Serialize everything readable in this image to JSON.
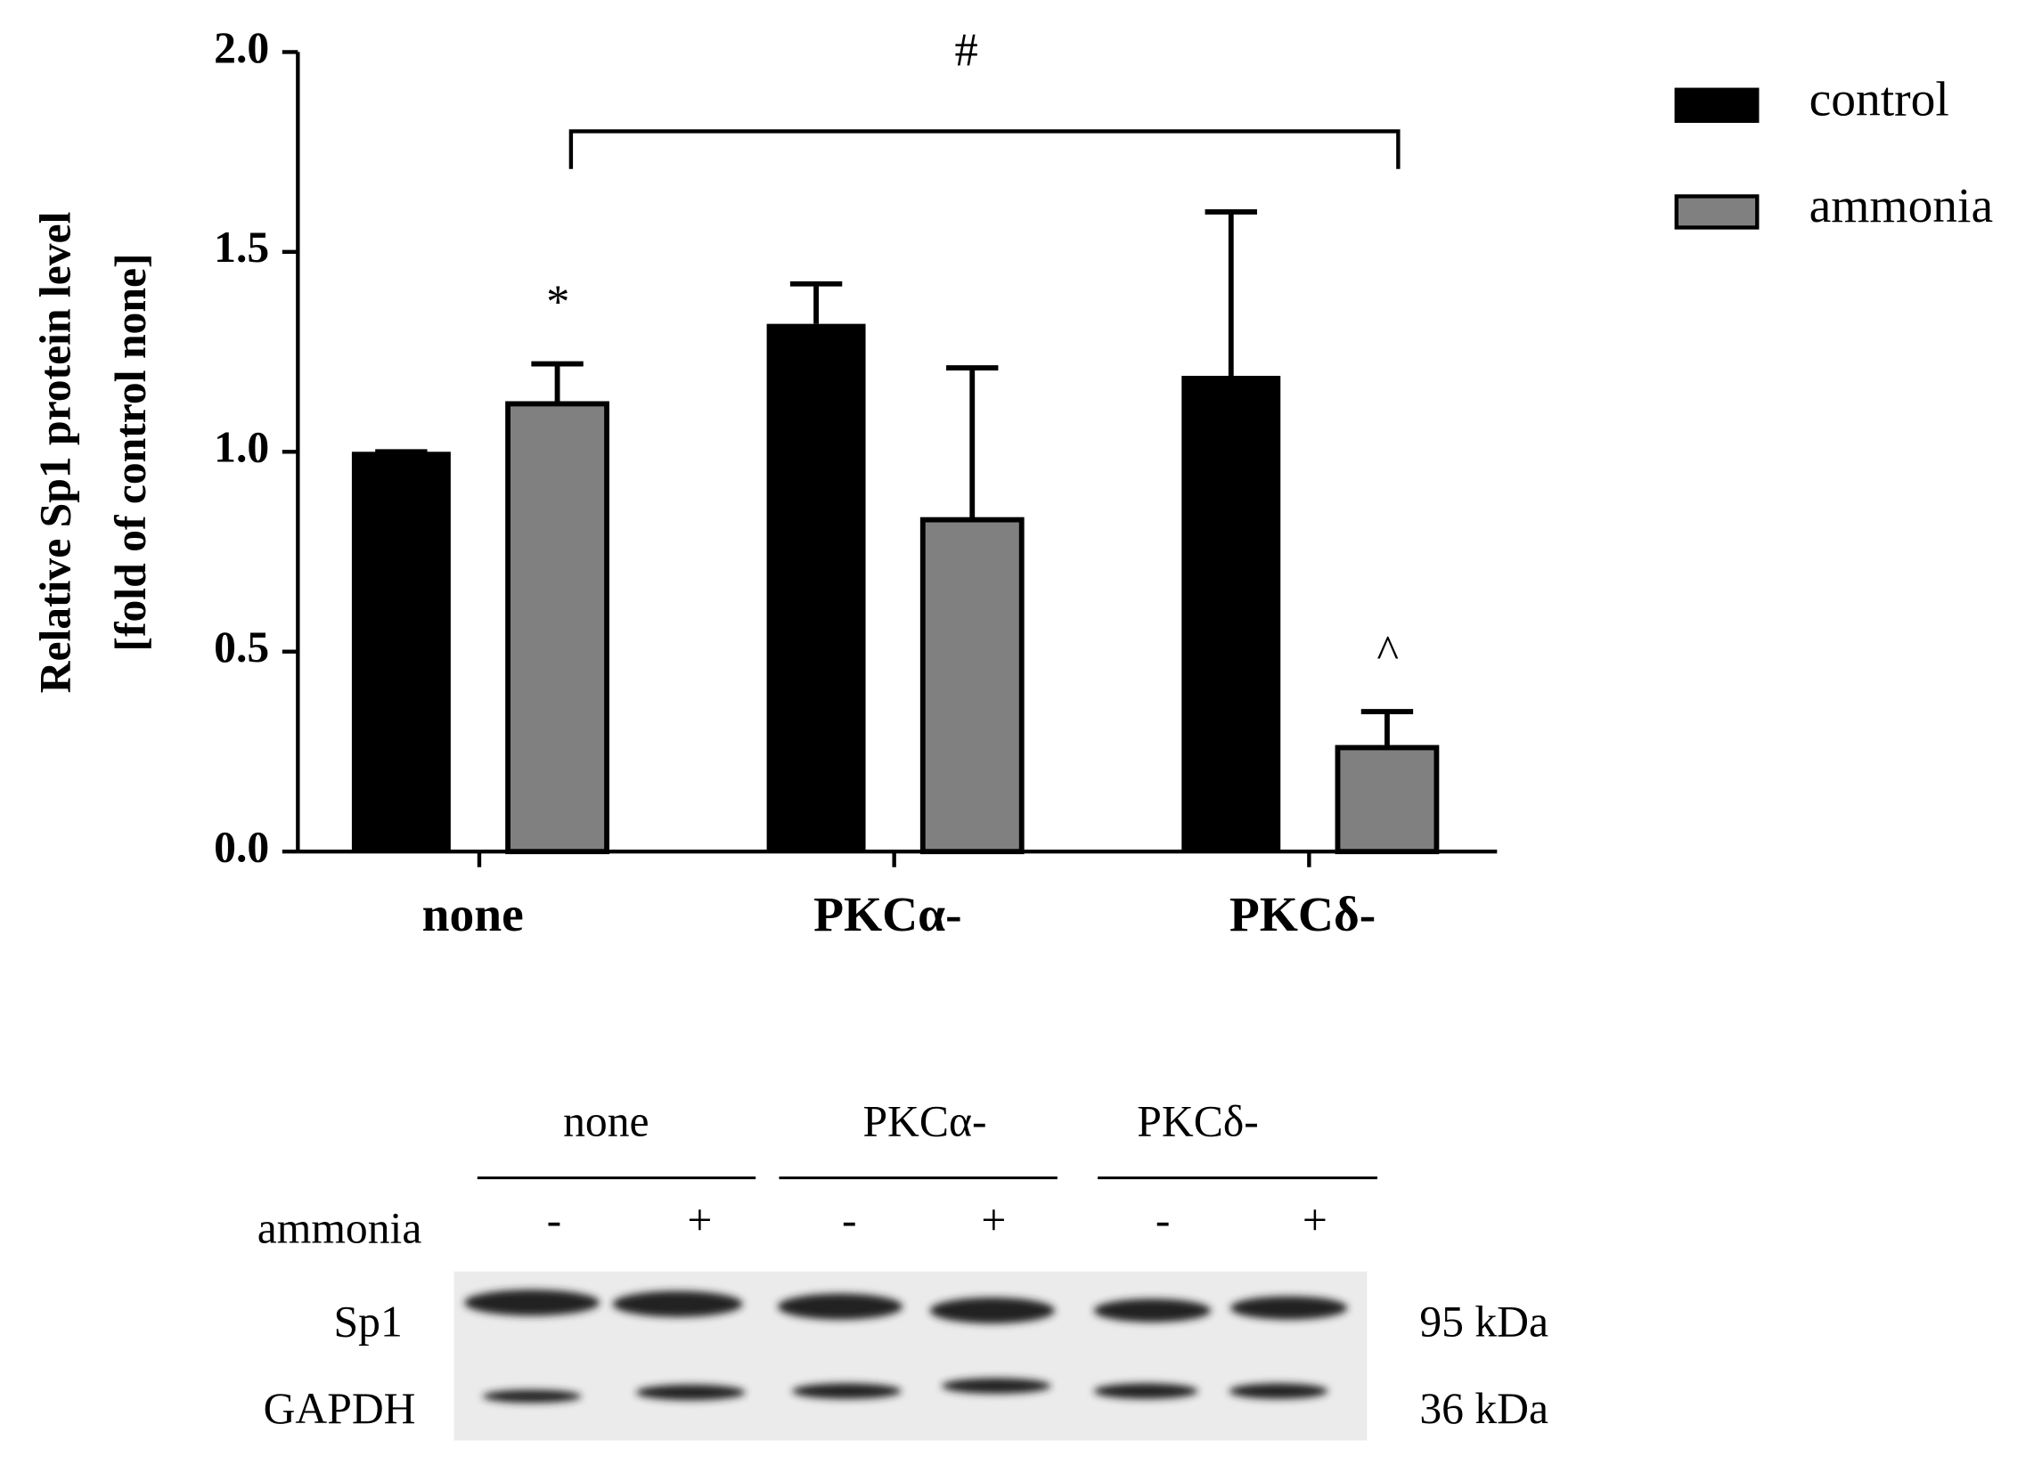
{
  "chart_data": {
    "type": "bar",
    "ylabel": [
      "Relative Sp1 protein level",
      "[fold of control none]"
    ],
    "categories": [
      "none",
      "PKCα-",
      "PKCδ-"
    ],
    "series": [
      {
        "name": "control",
        "color": "#000000",
        "values": [
          1.0,
          1.32,
          1.19
        ],
        "errors": [
          0,
          0.1,
          0.41
        ]
      },
      {
        "name": "ammonia",
        "color": "#808080",
        "values": [
          1.12,
          0.83,
          0.26
        ],
        "errors": [
          0.1,
          0.38,
          0.09
        ]
      }
    ],
    "ylim": [
      0,
      2
    ],
    "yticks": [
      {
        "value": 0,
        "label": "0.0"
      },
      0.5,
      {
        "value": 1,
        "label": "1.0"
      },
      1.5,
      {
        "value": 2,
        "label": "2.0"
      }
    ],
    "annotations": [
      "*",
      "^",
      "#"
    ],
    "legend": "top-right"
  },
  "blot": {
    "groups": [
      "none",
      "PKCα-",
      "PKCδ-"
    ],
    "treatment_label": "ammonia",
    "signs": [
      "-",
      "+",
      "-",
      "+",
      "-",
      "+"
    ],
    "rows": [
      {
        "label": "Sp1",
        "size": "95 kDa"
      },
      {
        "label": "GAPDH",
        "size": "36 kDa"
      }
    ]
  }
}
